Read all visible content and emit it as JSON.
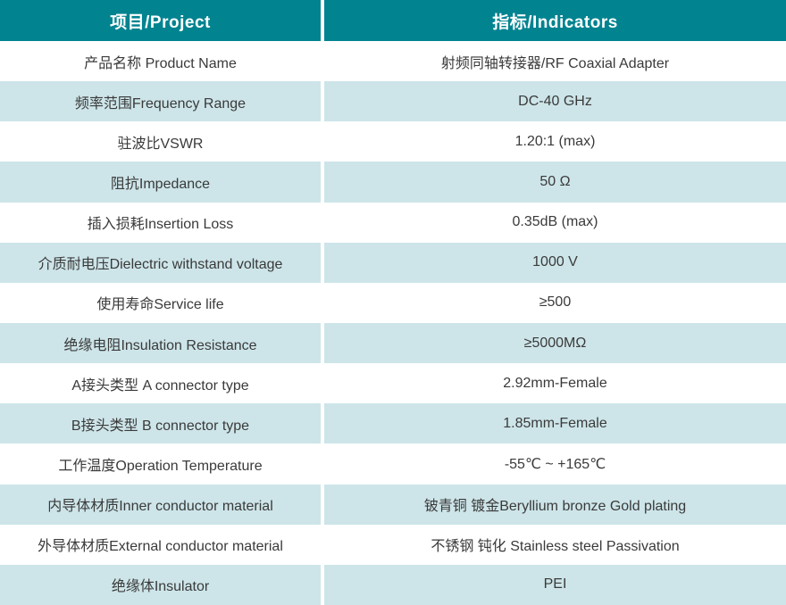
{
  "table": {
    "header": {
      "project": "项目/Project",
      "indicators": "指标/Indicators"
    },
    "rows": [
      {
        "project": "产品名称 Product Name",
        "indicator": "射频同轴转接器/RF Coaxial Adapter"
      },
      {
        "project": "频率范围Frequency Range",
        "indicator": "DC-40 GHz"
      },
      {
        "project": "驻波比VSWR",
        "indicator": "1.20:1 (max)"
      },
      {
        "project": "阻抗Impedance",
        "indicator": "50 Ω"
      },
      {
        "project": "插入损耗Insertion Loss",
        "indicator": "0.35dB (max)"
      },
      {
        "project": "介质耐电压Dielectric withstand voltage",
        "indicator": "1000 V"
      },
      {
        "project": "使用寿命Service life",
        "indicator": "≥500"
      },
      {
        "project": "绝缘电阻Insulation Resistance",
        "indicator": "≥5000MΩ"
      },
      {
        "project": "A接头类型 A connector type",
        "indicator": "2.92mm-Female"
      },
      {
        "project": "B接头类型 B connector type",
        "indicator": "1.85mm-Female"
      },
      {
        "project": "工作温度Operation Temperature",
        "indicator": "-55℃ ~ +165℃"
      },
      {
        "project": "内导体材质Inner conductor material",
        "indicator": "铍青铜 镀金Beryllium bronze Gold plating"
      },
      {
        "project": "外导体材质External conductor material",
        "indicator": "不锈钢 钝化 Stainless steel Passivation"
      },
      {
        "project": "绝缘体Insulator",
        "indicator": "PEI"
      }
    ],
    "colors": {
      "header_bg": "#028390",
      "header_text": "#ffffff",
      "row_alt_bg": "#cde5e9",
      "row_bg": "#ffffff",
      "body_text": "#3a3a3a",
      "divider": "#ffffff"
    }
  }
}
